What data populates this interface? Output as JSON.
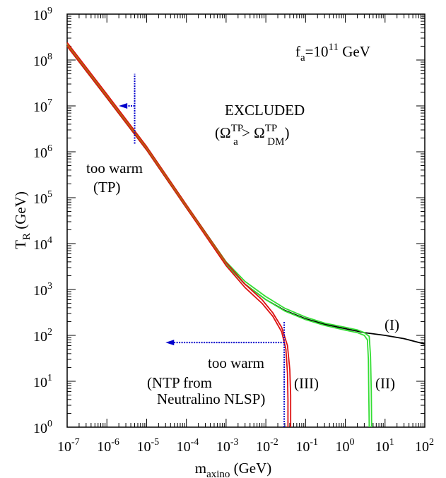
{
  "chart_data": {
    "type": "line",
    "xscale": "log",
    "yscale": "log",
    "xlim": [
      1e-07,
      100
    ],
    "ylim": [
      1,
      1000000000.0
    ],
    "xlabel": {
      "base": "m",
      "sub": "axino",
      "unit": " (GeV)"
    },
    "ylabel": {
      "base": "T",
      "sub": "R",
      "unit": " (GeV)"
    },
    "x_ticks": [
      {
        "base": "10",
        "exp": "-7"
      },
      {
        "base": "10",
        "exp": "-6"
      },
      {
        "base": "10",
        "exp": "-5"
      },
      {
        "base": "10",
        "exp": "-4"
      },
      {
        "base": "10",
        "exp": "-3"
      },
      {
        "base": "10",
        "exp": "-2"
      },
      {
        "base": "10",
        "exp": "-1"
      },
      {
        "base": "10",
        "exp": "0"
      },
      {
        "base": "10",
        "exp": "1"
      },
      {
        "base": "10",
        "exp": "2"
      }
    ],
    "y_ticks": [
      {
        "base": "10",
        "exp": "0"
      },
      {
        "base": "10",
        "exp": "1"
      },
      {
        "base": "10",
        "exp": "2"
      },
      {
        "base": "10",
        "exp": "3"
      },
      {
        "base": "10",
        "exp": "4"
      },
      {
        "base": "10",
        "exp": "5"
      },
      {
        "base": "10",
        "exp": "6"
      },
      {
        "base": "10",
        "exp": "7"
      },
      {
        "base": "10",
        "exp": "8"
      },
      {
        "base": "10",
        "exp": "9"
      }
    ],
    "grid": false,
    "series": [
      {
        "label": "(I)",
        "color": "#000000",
        "x": [
          1e-07,
          1e-06,
          1e-05,
          0.0001,
          0.001,
          0.003,
          0.01,
          0.03,
          0.1,
          0.3,
          1,
          3,
          10,
          30,
          100
        ],
        "y": [
          200000000.0,
          15000000.0,
          1100000.0,
          60000.0,
          3500.0,
          1300.0,
          600,
          350,
          230,
          175,
          140,
          115,
          100,
          85,
          65
        ]
      },
      {
        "label": "(II)",
        "color": "#33dd33",
        "x": [
          1e-07,
          1e-06,
          1e-05,
          0.0001,
          0.001,
          0.003,
          0.01,
          0.03,
          0.1,
          0.3,
          1,
          2,
          3,
          3.6,
          3.8,
          3.9,
          4.0
        ],
        "y": [
          200000000.0,
          15000000.0,
          1100000.0,
          60000.0,
          3500.0,
          1300.0,
          600,
          340,
          220,
          165,
          130,
          115,
          100,
          80,
          30,
          5,
          1
        ]
      },
      {
        "label": "(II)",
        "color": "#33dd33",
        "x": [
          1e-07,
          1e-06,
          1e-05,
          0.0001,
          0.001,
          0.003,
          0.01,
          0.03,
          0.1,
          0.3,
          1,
          2,
          3,
          4.0,
          4.3,
          4.5,
          4.6
        ],
        "y": [
          230000000.0,
          17500000.0,
          1300000.0,
          70000.0,
          4000.0,
          1500.0,
          700,
          390,
          250,
          185,
          150,
          132,
          115,
          95,
          35,
          6,
          1
        ]
      },
      {
        "label": "(III)",
        "color": "#dd1111",
        "x": [
          1e-07,
          1e-06,
          1e-05,
          0.0001,
          0.001,
          0.003,
          0.008,
          0.015,
          0.025,
          0.032,
          0.035,
          0.036,
          0.036
        ],
        "y": [
          200000000.0,
          15000000.0,
          1100000.0,
          60000.0,
          3300.0,
          1100.0,
          500,
          260,
          120,
          50,
          15,
          4,
          1
        ]
      },
      {
        "label": "(III)",
        "color": "#dd1111",
        "x": [
          1e-07,
          1e-06,
          1e-05,
          0.0001,
          0.001,
          0.003,
          0.008,
          0.015,
          0.025,
          0.035,
          0.04,
          0.042,
          0.042
        ],
        "y": [
          240000000.0,
          18000000.0,
          1300000.0,
          70000.0,
          3900.0,
          1300.0,
          600,
          310,
          150,
          60,
          18,
          5,
          1
        ]
      },
      {
        "label": "",
        "color": "#b06a10",
        "x": [
          1e-07,
          1e-06,
          1e-05,
          0.0001,
          0.001
        ],
        "y": [
          220000000.0,
          16500000.0,
          1200000.0,
          65000.0,
          3700.0
        ]
      }
    ],
    "bounds": [
      {
        "name": "too-warm-tp",
        "color": "#0000cc",
        "x": 5e-06,
        "y_range": [
          1500000.0,
          50000000.0
        ],
        "arrow_y": 10000000.0,
        "arrow_to_x": 2e-06
      },
      {
        "name": "too-warm-ntp",
        "color": "#0000cc",
        "x": 0.029,
        "y_range": [
          1,
          200
        ],
        "arrow_y": 70,
        "arrow_to_x": 3e-05
      }
    ],
    "annotations": {
      "fa": {
        "lhs": "f",
        "sub": "a",
        "eq": "=10",
        "exp": "11",
        "unit": " GeV"
      },
      "excluded": "EXCLUDED",
      "omega": {
        "open": "(",
        "omega": "Ω",
        "sup": "TP",
        "sub_a": "a",
        "gt": " > ",
        "sub_dm": "DM",
        "close": ")"
      },
      "too_warm_tp": "too warm",
      "tp": "(TP)",
      "too_warm_ntp": "too warm",
      "ntp_line1": "(NTP from",
      "ntp_line2": "Neutralino NLSP)",
      "label_I": "(I)",
      "label_II": "(II)",
      "label_III": "(III)"
    }
  }
}
